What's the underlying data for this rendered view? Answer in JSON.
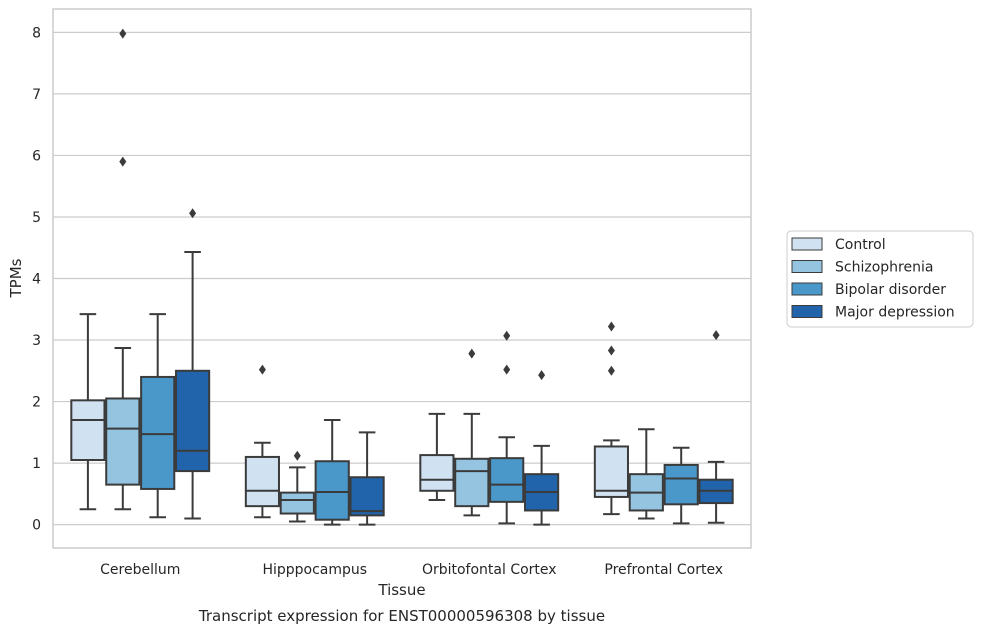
{
  "chart_data": {
    "type": "box",
    "title": "Transcript expression for ENST00000596308 by tissue",
    "xlabel": "Tissue",
    "ylabel": "TPMs",
    "ylim": [
      -0.38,
      8.38
    ],
    "yticks": [
      0,
      1,
      2,
      3,
      4,
      5,
      6,
      7,
      8
    ],
    "grid": "horizontal",
    "legend_placement": "center-right outside",
    "categories": [
      "Cerebellum",
      "Hipppocampus",
      "Orbitofontal Cortex",
      "Prefrontal Cortex"
    ],
    "series": [
      {
        "name": "Control",
        "color": "#d0e1f2",
        "boxes": [
          {
            "low": 0.25,
            "q1": 1.05,
            "median": 1.7,
            "q3": 2.02,
            "high": 3.42,
            "outliers": []
          },
          {
            "low": 0.12,
            "q1": 0.3,
            "median": 0.55,
            "q3": 1.1,
            "high": 1.33,
            "outliers": [
              2.52
            ]
          },
          {
            "low": 0.4,
            "q1": 0.55,
            "median": 0.73,
            "q3": 1.13,
            "high": 1.8,
            "outliers": []
          },
          {
            "low": 0.17,
            "q1": 0.45,
            "median": 0.55,
            "q3": 1.27,
            "high": 1.37,
            "outliers": [
              2.5,
              2.83,
              3.22
            ]
          }
        ]
      },
      {
        "name": "Schizophrenia",
        "color": "#94c4df",
        "boxes": [
          {
            "low": 0.25,
            "q1": 0.65,
            "median": 1.56,
            "q3": 2.05,
            "high": 2.87,
            "outliers": [
              5.9,
              7.98
            ]
          },
          {
            "low": 0.05,
            "q1": 0.18,
            "median": 0.4,
            "q3": 0.52,
            "high": 0.93,
            "outliers": [
              1.12
            ]
          },
          {
            "low": 0.15,
            "q1": 0.3,
            "median": 0.87,
            "q3": 1.07,
            "high": 1.8,
            "outliers": [
              2.78
            ]
          },
          {
            "low": 0.1,
            "q1": 0.23,
            "median": 0.52,
            "q3": 0.82,
            "high": 1.55,
            "outliers": []
          }
        ]
      },
      {
        "name": "Bipolar disorder",
        "color": "#4a98c9",
        "boxes": [
          {
            "low": 0.12,
            "q1": 0.58,
            "median": 1.47,
            "q3": 2.4,
            "high": 3.42,
            "outliers": []
          },
          {
            "low": 0.0,
            "q1": 0.08,
            "median": 0.53,
            "q3": 1.03,
            "high": 1.7,
            "outliers": []
          },
          {
            "low": 0.02,
            "q1": 0.37,
            "median": 0.65,
            "q3": 1.08,
            "high": 1.42,
            "outliers": [
              2.52,
              3.07
            ]
          },
          {
            "low": 0.02,
            "q1": 0.33,
            "median": 0.75,
            "q3": 0.97,
            "high": 1.25,
            "outliers": []
          }
        ]
      },
      {
        "name": "Major depression",
        "color": "#2164ab",
        "boxes": [
          {
            "low": 0.1,
            "q1": 0.87,
            "median": 1.2,
            "q3": 2.5,
            "high": 4.43,
            "outliers": [
              5.06
            ]
          },
          {
            "low": 0.0,
            "q1": 0.15,
            "median": 0.22,
            "q3": 0.77,
            "high": 1.5,
            "outliers": []
          },
          {
            "low": 0.0,
            "q1": 0.23,
            "median": 0.53,
            "q3": 0.82,
            "high": 1.28,
            "outliers": [
              2.43
            ]
          },
          {
            "low": 0.03,
            "q1": 0.35,
            "median": 0.55,
            "q3": 0.73,
            "high": 1.02,
            "outliers": [
              3.08
            ]
          }
        ]
      }
    ]
  }
}
